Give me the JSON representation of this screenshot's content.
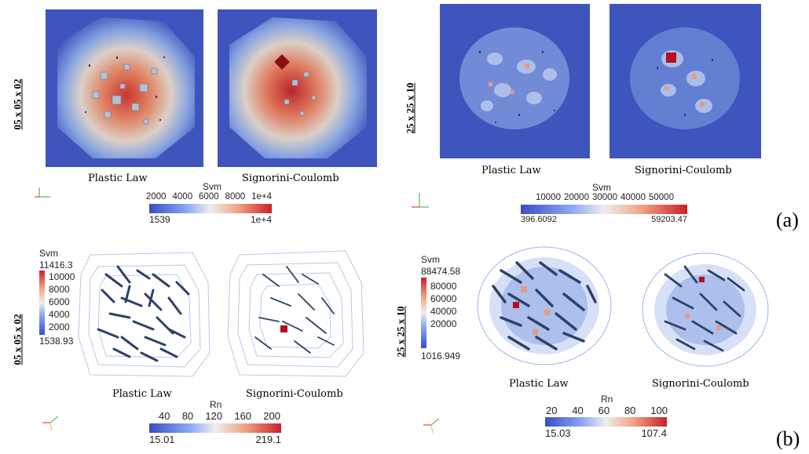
{
  "panel_a": {
    "tag": "(a)",
    "case_left": "05 x 05 x 02",
    "case_right": "25 x 25 x 10",
    "captions": [
      "Plastic Law",
      "Signorini-Coulomb",
      "Plastic Law",
      "Signorini-Coulomb"
    ],
    "colorbar_left": {
      "title": "Svm",
      "ticks": [
        "2000",
        "4000",
        "6000",
        "8000",
        "1e+4"
      ],
      "min": "1539",
      "max": "1e+4"
    },
    "colorbar_right": {
      "title": "Svm",
      "ticks": [
        "10000",
        "20000",
        "30000",
        "40000",
        "50000"
      ],
      "min": "396.6092",
      "max": "59203.47"
    }
  },
  "panel_b": {
    "tag": "(b)",
    "case_left": "05 x 05 x 02",
    "case_right": "25 x 25 x 10",
    "captions": [
      "Plastic Law",
      "Signorini-Coulomb",
      "Plastic Law",
      "Signorini-Coulomb"
    ],
    "vcolorbar_left": {
      "title": "Svm",
      "max": "11416.3",
      "ticks": [
        "10000",
        "8000",
        "6000",
        "4000",
        "2000"
      ],
      "min": "1538.93"
    },
    "vcolorbar_right": {
      "title": "Svm",
      "max": "88474.58",
      "ticks": [
        "80000",
        "60000",
        "40000",
        "20000"
      ],
      "min": "1016.949"
    },
    "colorbar_left": {
      "title": "Rn",
      "ticks": [
        "40",
        "80",
        "120",
        "160",
        "200"
      ],
      "min": "15.01",
      "max": "219.1"
    },
    "colorbar_right": {
      "title": "Rn",
      "ticks": [
        "20",
        "40",
        "60",
        "80",
        "100"
      ],
      "min": "15.03",
      "max": "107.4"
    }
  },
  "colors": {
    "field_low": "#3a4dc4",
    "field_high": "#c9202a",
    "fiber": "#2b3a5c"
  }
}
